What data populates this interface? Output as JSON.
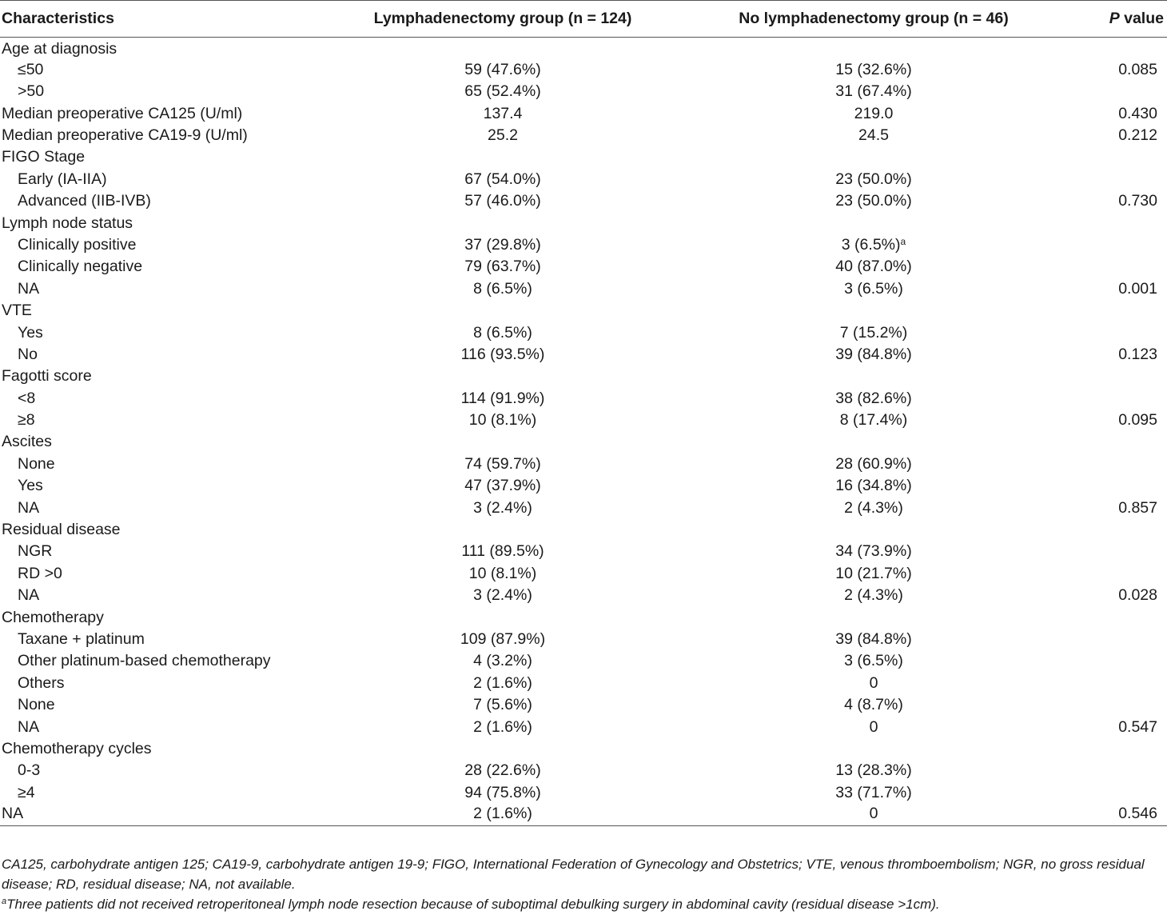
{
  "table": {
    "headers": {
      "characteristics": "Characteristics",
      "lymph": "Lymphadenectomy group (n = 124)",
      "nolymph": "No lymphadenectomy group (n = 46)",
      "p_italic": "P",
      "p_rest": " value"
    },
    "rows": [
      {
        "label": "Age at diagnosis",
        "indent": false,
        "lymph": "",
        "nolymph": "",
        "p": ""
      },
      {
        "label": "≤50",
        "indent": true,
        "lymph": "59 (47.6%)",
        "nolymph": "15 (32.6%)",
        "p": "0.085"
      },
      {
        "label": ">50",
        "indent": true,
        "lymph": "65 (52.4%)",
        "nolymph": "31 (67.4%)",
        "p": ""
      },
      {
        "label": "Median preoperative CA125 (U/ml)",
        "indent": false,
        "lymph": "137.4",
        "nolymph": "219.0",
        "p": "0.430"
      },
      {
        "label": "Median preoperative CA19-9 (U/ml)",
        "indent": false,
        "lymph": "25.2",
        "nolymph": "24.5",
        "p": "0.212"
      },
      {
        "label": "FIGO Stage",
        "indent": false,
        "lymph": "",
        "nolymph": "",
        "p": ""
      },
      {
        "label": "Early (IA-IIA)",
        "indent": true,
        "lymph": "67 (54.0%)",
        "nolymph": "23 (50.0%)",
        "p": ""
      },
      {
        "label": "Advanced (IIB-IVB)",
        "indent": true,
        "lymph": "57 (46.0%)",
        "nolymph": "23 (50.0%)",
        "p": "0.730"
      },
      {
        "label": "Lymph node status",
        "indent": false,
        "lymph": "",
        "nolymph": "",
        "p": ""
      },
      {
        "label": "Clinically positive",
        "indent": true,
        "lymph": "37 (29.8%)",
        "nolymph": "3 (6.5%)",
        "nolymph_sup": "a",
        "p": ""
      },
      {
        "label": "Clinically negative",
        "indent": true,
        "lymph": "79 (63.7%)",
        "nolymph": "40 (87.0%)",
        "p": ""
      },
      {
        "label": "NA",
        "indent": true,
        "lymph": "8 (6.5%)",
        "nolymph": "3 (6.5%)",
        "p": "0.001"
      },
      {
        "label": "VTE",
        "indent": false,
        "lymph": "",
        "nolymph": "",
        "p": ""
      },
      {
        "label": "Yes",
        "indent": true,
        "lymph": "8 (6.5%)",
        "nolymph": "7 (15.2%)",
        "p": ""
      },
      {
        "label": "No",
        "indent": true,
        "lymph": "116 (93.5%)",
        "nolymph": "39 (84.8%)",
        "p": "0.123"
      },
      {
        "label": "Fagotti score",
        "indent": false,
        "lymph": "",
        "nolymph": "",
        "p": ""
      },
      {
        "label": "<8",
        "indent": true,
        "lymph": "114 (91.9%)",
        "nolymph": "38 (82.6%)",
        "p": ""
      },
      {
        "label": "≥8",
        "indent": true,
        "lymph": "10 (8.1%)",
        "nolymph": "8 (17.4%)",
        "p": "0.095"
      },
      {
        "label": "Ascites",
        "indent": false,
        "lymph": "",
        "nolymph": "",
        "p": ""
      },
      {
        "label": "None",
        "indent": true,
        "lymph": "74 (59.7%)",
        "nolymph": "28 (60.9%)",
        "p": ""
      },
      {
        "label": "Yes",
        "indent": true,
        "lymph": "47 (37.9%)",
        "nolymph": "16 (34.8%)",
        "p": ""
      },
      {
        "label": "NA",
        "indent": true,
        "lymph": "3 (2.4%)",
        "nolymph": "2 (4.3%)",
        "p": "0.857"
      },
      {
        "label": "Residual disease",
        "indent": false,
        "lymph": "",
        "nolymph": "",
        "p": ""
      },
      {
        "label": "NGR",
        "indent": true,
        "lymph": "111 (89.5%)",
        "nolymph": "34 (73.9%)",
        "p": ""
      },
      {
        "label": "RD >0",
        "indent": true,
        "lymph": "10 (8.1%)",
        "nolymph": "10 (21.7%)",
        "p": ""
      },
      {
        "label": "NA",
        "indent": true,
        "lymph": "3 (2.4%)",
        "nolymph": "2 (4.3%)",
        "p": "0.028"
      },
      {
        "label": "Chemotherapy",
        "indent": false,
        "lymph": "",
        "nolymph": "",
        "p": ""
      },
      {
        "label": "Taxane + platinum",
        "indent": true,
        "lymph": "109 (87.9%)",
        "nolymph": "39 (84.8%)",
        "p": ""
      },
      {
        "label": "Other platinum-based chemotherapy",
        "indent": true,
        "lymph": "4 (3.2%)",
        "nolymph": "3 (6.5%)",
        "p": ""
      },
      {
        "label": "Others",
        "indent": true,
        "lymph": "2 (1.6%)",
        "nolymph": "0",
        "p": ""
      },
      {
        "label": "None",
        "indent": true,
        "lymph": "7 (5.6%)",
        "nolymph": "4 (8.7%)",
        "p": ""
      },
      {
        "label": "NA",
        "indent": true,
        "lymph": "2 (1.6%)",
        "nolymph": "0",
        "p": "0.547"
      },
      {
        "label": "Chemotherapy cycles",
        "indent": false,
        "lymph": "",
        "nolymph": "",
        "p": ""
      },
      {
        "label": "0-3",
        "indent": true,
        "lymph": "28 (22.6%)",
        "nolymph": "13 (28.3%)",
        "p": ""
      },
      {
        "label": "≥4",
        "indent": true,
        "lymph": "94 (75.8%)",
        "nolymph": "33 (71.7%)",
        "p": ""
      },
      {
        "label": "NA",
        "indent": false,
        "lymph": "2 (1.6%)",
        "nolymph": "0",
        "p": "0.546"
      }
    ]
  },
  "footnotes": {
    "abbreviations": "CA125, carbohydrate antigen 125; CA19-9, carbohydrate antigen 19-9; FIGO, International Federation of Gynecology and Obstetrics; VTE, venous thromboembolism; NGR, no gross residual disease; RD, residual disease; NA, not available.",
    "note_a_marker": "a",
    "note_a_text": "Three patients did not received retroperitoneal lymph node resection because of suboptimal debulking surgery in abdominal cavity (residual disease >1cm)."
  }
}
